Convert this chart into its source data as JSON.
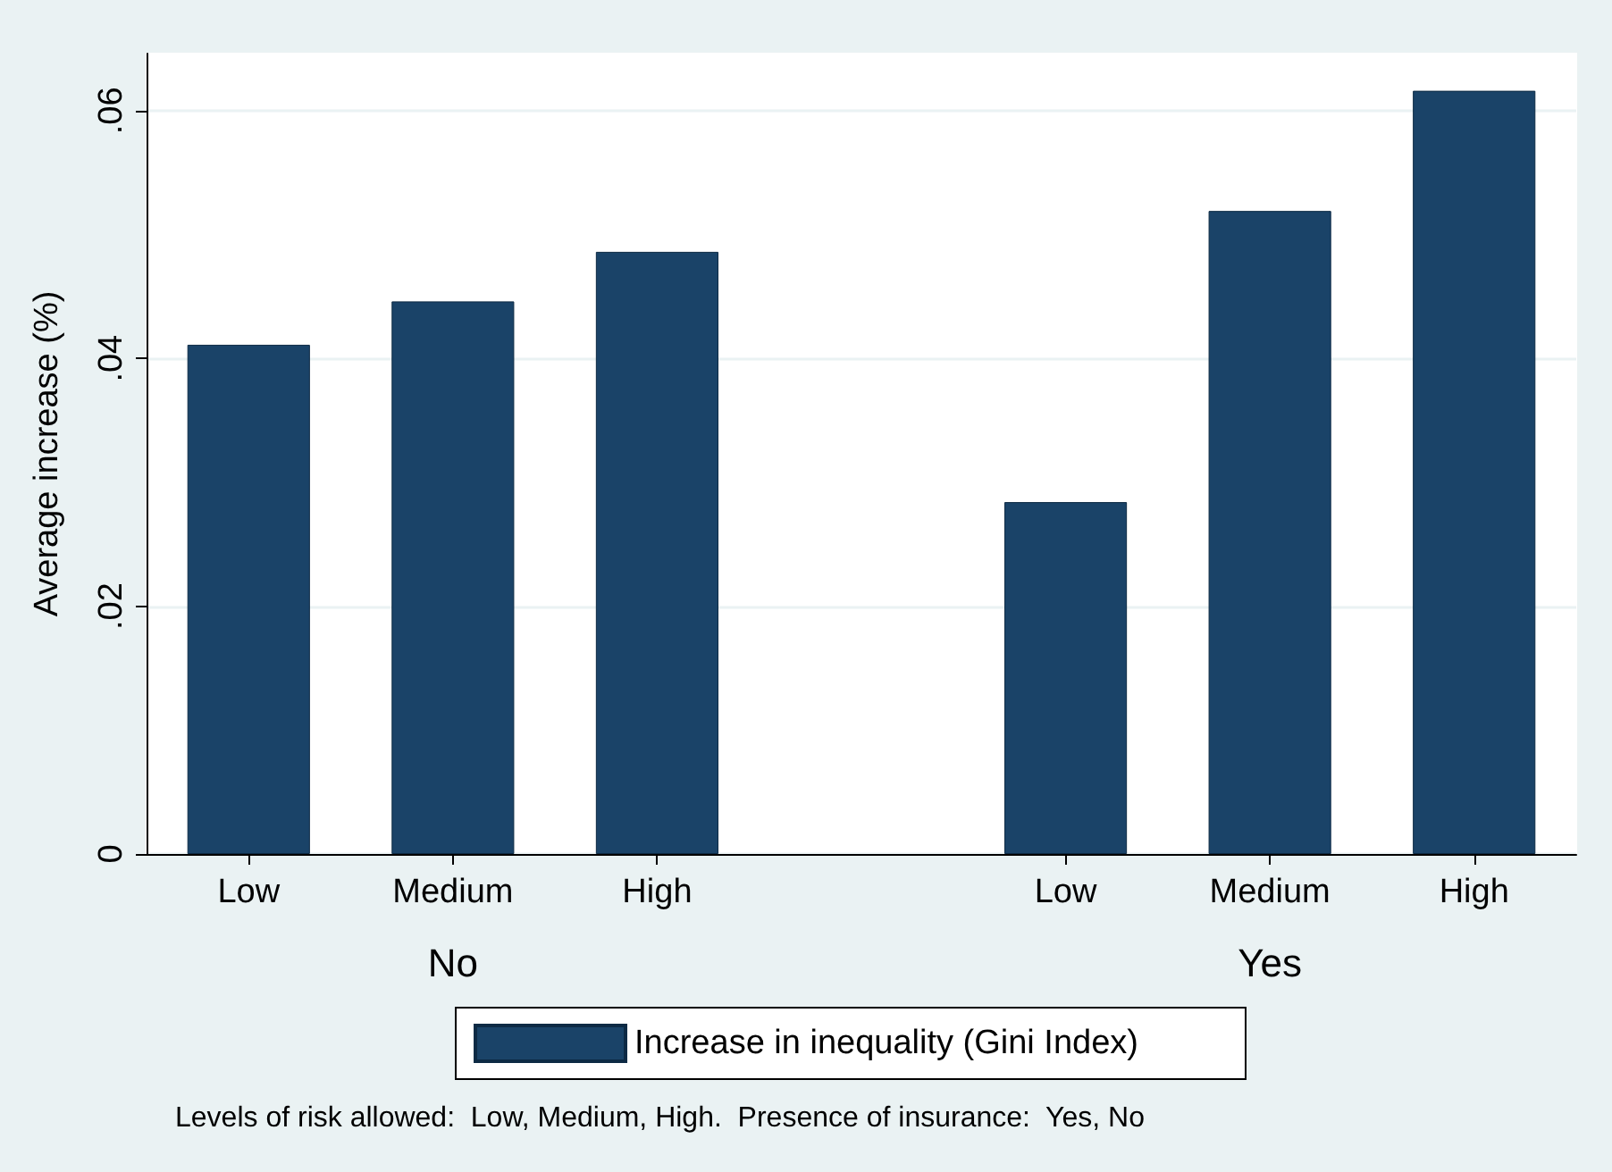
{
  "chart_data": {
    "type": "bar",
    "ylabel": "Average increase (%)",
    "categories": [
      "Low",
      "Medium",
      "High",
      null,
      "Low",
      "Medium",
      "High"
    ],
    "series": [
      {
        "name": "Increase in inequality (Gini Index)",
        "color": "#1a4368",
        "values": [
          0.0411,
          0.0446,
          0.0486,
          null,
          0.0284,
          0.0519,
          0.0616
        ]
      }
    ],
    "ylim": [
      0,
      0.0646
    ],
    "yticks": [
      {
        "value": 0,
        "label": "0"
      },
      {
        "value": 0.02,
        "label": ".02"
      },
      {
        "value": 0.04,
        "label": ".04"
      },
      {
        "value": 0.06,
        "label": ".06"
      }
    ],
    "grid": "y",
    "legend": "bottom",
    "annotations": [
      "No",
      "Yes",
      "Levels of risk allowed:  Low, Medium, High.  Presence of insurance:  Yes, No"
    ]
  }
}
